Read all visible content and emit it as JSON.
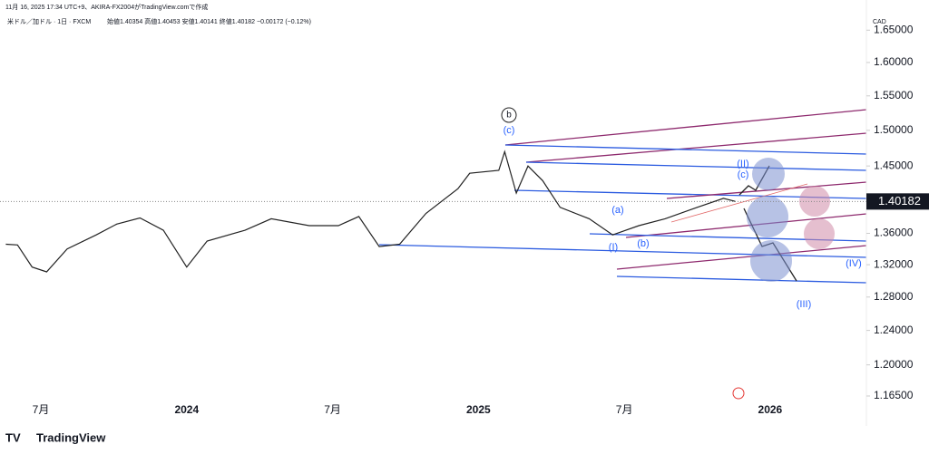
{
  "header": "11月 16, 2025 17:34 UTC+9、AKIRA-FX2004がTradingView.comで作成",
  "logo": "TradingView",
  "chart_data": {
    "type": "line",
    "title": "米ドル／加ドル · 1日 · FXCM",
    "ohlc_text": "始値1.40354 高値1.40453 安値1.40141 終値1.40182 −0.00172 (−0.12%)",
    "currency": "CAD",
    "log_scale": true,
    "x": [
      2023.38,
      2023.42,
      2023.47,
      2023.52,
      2023.59,
      2023.69,
      2023.76,
      2023.84,
      2023.92,
      2024.0,
      2024.07,
      2024.2,
      2024.29,
      2024.42,
      2024.52,
      2024.59,
      2024.66,
      2024.73,
      2024.82,
      2024.93,
      2024.97,
      2025.07,
      2025.09,
      2025.13,
      2025.17,
      2025.22,
      2025.28,
      2025.38,
      2025.46,
      2025.55,
      2025.64,
      2025.75,
      2025.84,
      2025.88
    ],
    "series": [
      {
        "color": "#222222",
        "values": [
          1.346,
          1.345,
          1.317,
          1.311,
          1.34,
          1.358,
          1.372,
          1.38,
          1.364,
          1.317,
          1.35,
          1.364,
          1.379,
          1.37,
          1.37,
          1.382,
          1.343,
          1.346,
          1.386,
          1.419,
          1.44,
          1.444,
          1.47,
          1.413,
          1.45,
          1.43,
          1.394,
          1.379,
          1.358,
          1.37,
          1.379,
          1.394,
          1.406,
          1.402
        ]
      }
    ],
    "last_price": 1.40182,
    "xlim": [
      2023.36,
      2026.33
    ],
    "xticks": [
      {
        "value": 2023.5,
        "label": "7月"
      },
      2024,
      {
        "value": 2024.5,
        "label": "7月"
      },
      2025,
      {
        "value": 2025.5,
        "label": "7月"
      },
      2026
    ],
    "ylim": [
      1.152,
      1.669
    ],
    "yticks": [
      {
        "value": 1.65,
        "label": "1.65000"
      },
      {
        "value": 1.6,
        "label": "1.60000"
      },
      {
        "value": 1.55,
        "label": "1.55000"
      },
      {
        "value": 1.5,
        "label": "1.50000"
      },
      {
        "value": 1.45,
        "label": "1.45000"
      },
      {
        "value": 1.36,
        "label": "1.36000"
      },
      {
        "value": 1.32,
        "label": "1.32000"
      },
      {
        "value": 1.28,
        "label": "1.28000"
      },
      {
        "value": 1.24,
        "label": "1.24000"
      },
      {
        "value": 1.2,
        "label": "1.20000"
      },
      {
        "value": 1.165,
        "label": "1.16500"
      }
    ],
    "annotations": [
      "b",
      "(c)",
      "(II)",
      "(c)",
      "(a)",
      "(I)",
      "(b)",
      "(IV)",
      "(III)"
    ]
  }
}
